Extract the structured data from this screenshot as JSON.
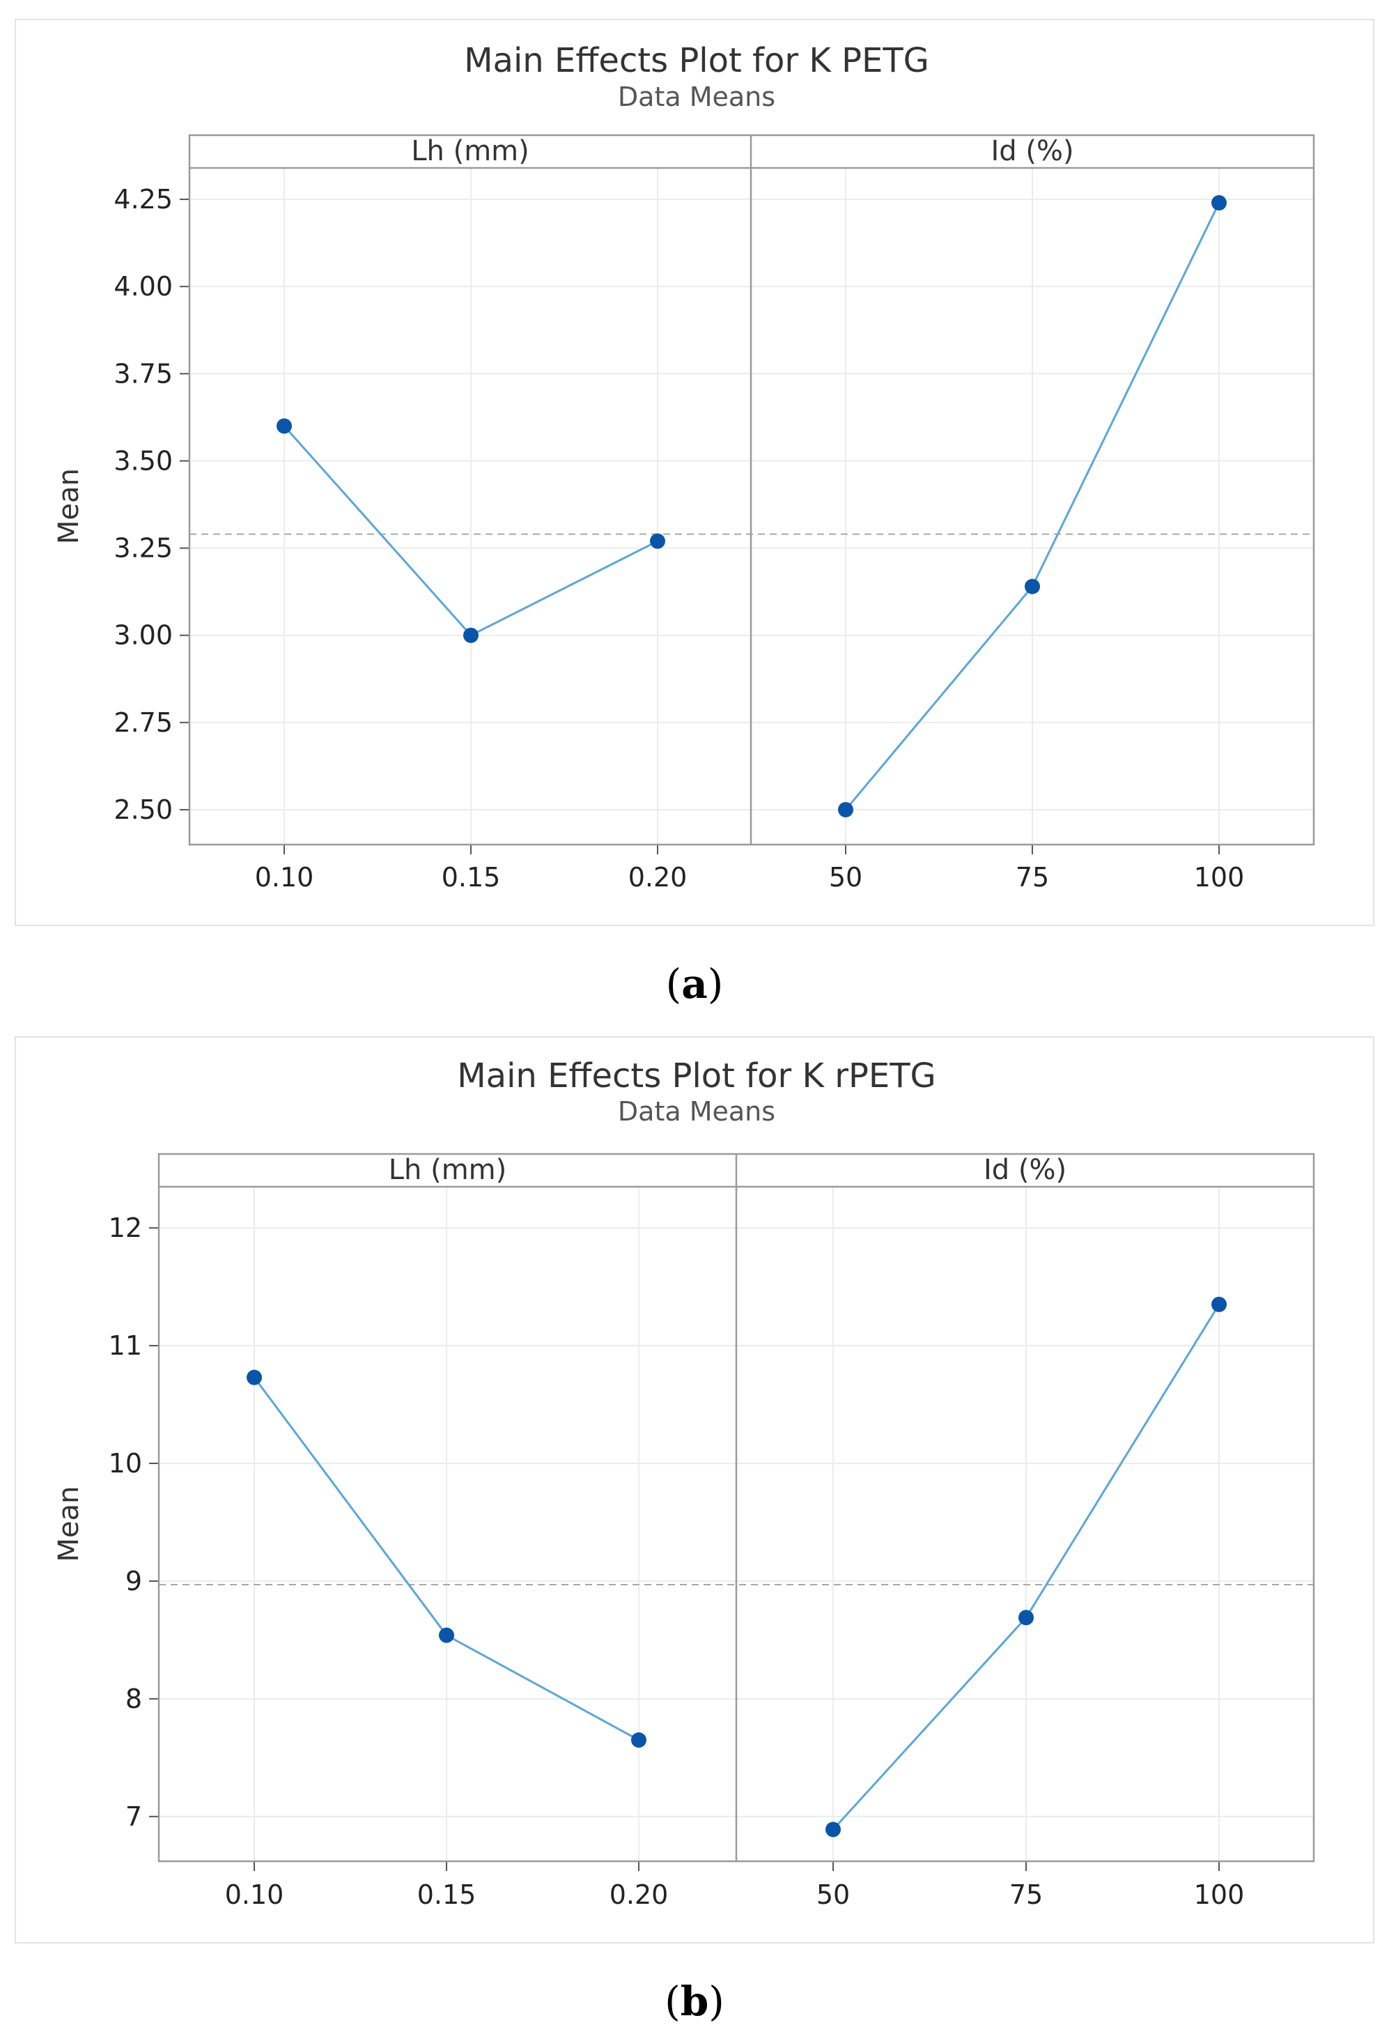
{
  "series_color": "#5BA7D9",
  "point_color": "#0A55A8",
  "chart_data": [
    {
      "type": "line",
      "title": "Main Effects Plot for K PETG",
      "subtitle": "Data Means",
      "ylabel": "Mean",
      "ylim": [
        2.4,
        4.34
      ],
      "yticks": [
        2.5,
        2.75,
        3.0,
        3.25,
        3.5,
        3.75,
        4.0,
        4.25
      ],
      "ytick_labels": [
        "2.50",
        "2.75",
        "3.00",
        "3.25",
        "3.50",
        "3.75",
        "4.00",
        "4.25"
      ],
      "overall_mean": 3.29,
      "caption_letter": "a",
      "panels": [
        {
          "factor": "Lh (mm)",
          "categories": [
            "0.10",
            "0.15",
            "0.20"
          ],
          "values": [
            3.6,
            3.0,
            3.27
          ]
        },
        {
          "factor": "Id (%)",
          "categories": [
            "50",
            "75",
            "100"
          ],
          "values": [
            2.5,
            3.14,
            4.24
          ]
        }
      ]
    },
    {
      "type": "line",
      "title": "Main Effects Plot for K rPETG",
      "subtitle": "Data Means",
      "ylabel": "Mean",
      "ylim": [
        6.62,
        12.35
      ],
      "yticks": [
        7,
        8,
        9,
        10,
        11,
        12
      ],
      "ytick_labels": [
        "7",
        "8",
        "9",
        "10",
        "11",
        "12"
      ],
      "overall_mean": 8.97,
      "caption_letter": "b",
      "panels": [
        {
          "factor": "Lh (mm)",
          "categories": [
            "0.10",
            "0.15",
            "0.20"
          ],
          "values": [
            10.73,
            8.54,
            7.65
          ]
        },
        {
          "factor": "Id (%)",
          "categories": [
            "50",
            "75",
            "100"
          ],
          "values": [
            6.89,
            8.69,
            11.35
          ]
        }
      ]
    }
  ]
}
